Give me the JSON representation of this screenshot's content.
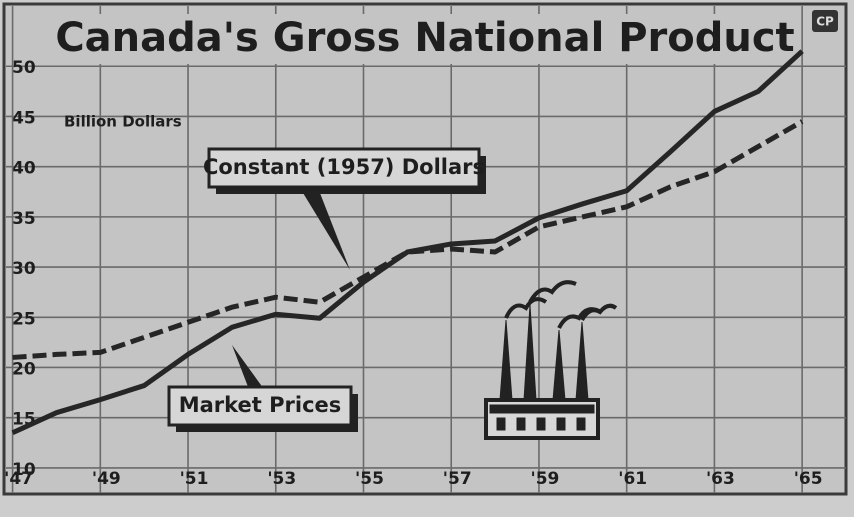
{
  "chart_data": {
    "type": "line",
    "title": "Canada's Gross National Product",
    "y_label": "Billion Dollars",
    "logo": "CP",
    "x": [
      1947,
      1948,
      1949,
      1950,
      1951,
      1952,
      1953,
      1954,
      1955,
      1956,
      1957,
      1958,
      1959,
      1960,
      1961,
      1962,
      1963,
      1964,
      1965
    ],
    "series": [
      {
        "name": "Market Prices",
        "color": "#262626",
        "style": "solid",
        "values": [
          13.5,
          15.5,
          16.8,
          18.2,
          21.3,
          24,
          25.3,
          24.9,
          28.5,
          31.5,
          32.3,
          32.6,
          34.9,
          36.3,
          37.6,
          41.5,
          45.5,
          47.5,
          51.5
        ]
      },
      {
        "name": "Constant (1957) Dollars",
        "color": "#262626",
        "style": "dashed",
        "values": [
          21,
          21.3,
          21.5,
          23,
          24.5,
          26,
          27,
          26.5,
          29,
          31.5,
          31.8,
          31.5,
          34,
          35,
          36,
          38,
          39.5,
          42,
          44.5
        ]
      }
    ],
    "xlim": [
      1946.85,
      1966
    ],
    "ylim": [
      7.5,
      56
    ],
    "xticks": [
      {
        "value": 1947,
        "label": "'47"
      },
      {
        "value": 1949,
        "label": "'49"
      },
      {
        "value": 1951,
        "label": "'51"
      },
      {
        "value": 1953,
        "label": "'53"
      },
      {
        "value": 1955,
        "label": "'55"
      },
      {
        "value": 1957,
        "label": "'57"
      },
      {
        "value": 1959,
        "label": "'59"
      },
      {
        "value": 1961,
        "label": "'61"
      },
      {
        "value": 1963,
        "label": "'63"
      },
      {
        "value": 1965,
        "label": "'65"
      }
    ],
    "yticks": [
      10,
      15,
      20,
      25,
      30,
      35,
      40,
      45,
      50
    ],
    "grid": true
  }
}
